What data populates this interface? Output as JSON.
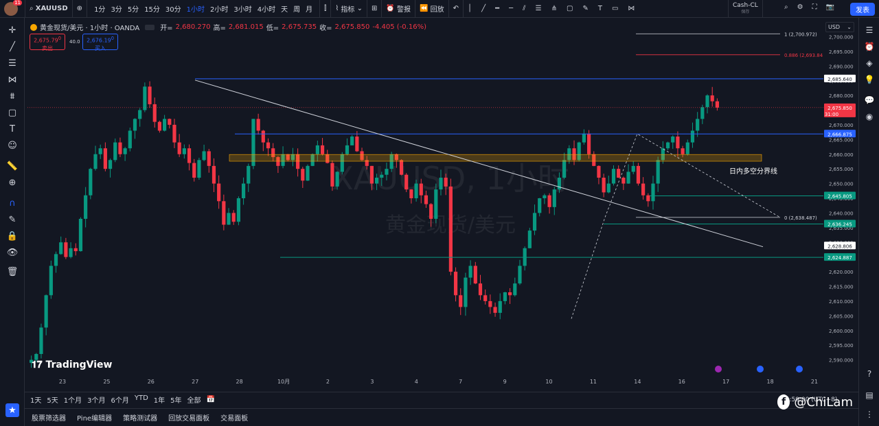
{
  "topbar": {
    "avatar_badge": "11",
    "symbol": "XAUUSD",
    "timeframes": [
      "1分",
      "3分",
      "5分",
      "15分",
      "30分",
      "1小时",
      "2小时",
      "3小时",
      "4小时",
      "天",
      "周",
      "月"
    ],
    "active_timeframe_index": 5,
    "indicators_label": "指标",
    "alert_label": "警报",
    "replay_label": "回放",
    "layout_name": "Cash-CL",
    "layout_status": "保存",
    "publish_label": "发表"
  },
  "legend": {
    "title": "黄金现货/美元 · 1小时 · OANDA",
    "open_label": "开=",
    "open": "2,680.270",
    "high_label": "高=",
    "high": "2,681.015",
    "low_label": "低=",
    "low": "2,675.735",
    "close_label": "收=",
    "close": "2,675.850",
    "change": "-4.405 (-0.16%)"
  },
  "sell": {
    "price": "2,675.79",
    "sup": "0",
    "label": "卖出"
  },
  "buy": {
    "price": "2,676.19",
    "sup": "0",
    "label": "买入"
  },
  "spread": "40.0",
  "currency": "USD",
  "watermark": {
    "main": "XAUUSD, 1小时",
    "sub": "黄金现货/美元"
  },
  "tv_logo": "TradingView",
  "annotation_text": "日内多空分界线",
  "fib_labels": [
    {
      "text": "1 (2,700.972)",
      "color": "#d1d4dc"
    },
    {
      "text": "0.886 (2,693.84",
      "color": "#f23645"
    },
    {
      "text": "0 (2,638.487)",
      "color": "#d1d4dc"
    }
  ],
  "price_tags": [
    {
      "price": "2,685.640",
      "bg": "#ffffff",
      "fg": "#131722"
    },
    {
      "price": "2,675.850",
      "bg": "#f23645",
      "fg": "#ffffff",
      "countdown": "31:00"
    },
    {
      "price": "2,666.875",
      "bg": "#2962ff",
      "fg": "#ffffff"
    },
    {
      "price": "2,645.805",
      "bg": "#089981",
      "fg": "#ffffff"
    },
    {
      "price": "2,636.245",
      "bg": "#089981",
      "fg": "#ffffff"
    },
    {
      "price": "2,628.806",
      "bg": "#ffffff",
      "fg": "#131722"
    },
    {
      "price": "2,624.887",
      "bg": "#089981",
      "fg": "#ffffff"
    }
  ],
  "bottombar": {
    "ranges": [
      "1天",
      "5天",
      "1个月",
      "3个月",
      "6个月",
      "YTD",
      "1年",
      "5年",
      "全部"
    ],
    "time_display": "14:59:00 (UTC+8)"
  },
  "panels": [
    "股票筛选器",
    "Pine编辑器",
    "策略测试器",
    "回放交易面板",
    "交易面板"
  ],
  "brand": {
    "author": "@ChiLam"
  },
  "chart_data": {
    "type": "candlestick",
    "title": "黄金现货/美元 · 1小时 · OANDA",
    "symbol": "XAUUSD",
    "ylim": [
      2585,
      2705
    ],
    "y_ticks": [
      2590,
      2595,
      2600,
      2605,
      2610,
      2615,
      2620,
      2625,
      2630,
      2635,
      2640,
      2645,
      2650,
      2655,
      2660,
      2665,
      2670,
      2675,
      2680,
      2685,
      2690,
      2695,
      2700
    ],
    "x_tick_labels": [
      "23",
      "25",
      "26",
      "27",
      "28",
      "10月",
      "2",
      "3",
      "4",
      "7",
      "9",
      "10",
      "11",
      "14",
      "16",
      "17",
      "18",
      "21"
    ],
    "last_ohlc": {
      "open": 2680.27,
      "high": 2681.015,
      "low": 2675.735,
      "close": 2675.85
    },
    "change": -4.405,
    "change_pct": -0.16,
    "horizontal_levels": [
      2685.64,
      2666.875,
      2645.805,
      2636.245,
      2624.887,
      2628.806
    ],
    "fib_levels": [
      {
        "ratio": 1,
        "price": 2700.972
      },
      {
        "ratio": 0.886,
        "price": 2693.84
      },
      {
        "ratio": 0,
        "price": 2638.487
      }
    ],
    "path_close": [
      2590,
      2592,
      2601,
      2612,
      2622,
      2626,
      2630,
      2625,
      2628,
      2627,
      2638,
      2646,
      2655,
      2660,
      2662,
      2655,
      2658,
      2664,
      2660,
      2662,
      2668,
      2672,
      2675,
      2683,
      2677,
      2671,
      2668,
      2672,
      2670,
      2664,
      2660,
      2662,
      2657,
      2652,
      2658,
      2661,
      2656,
      2650,
      2644,
      2636,
      2640,
      2637,
      2645,
      2650,
      2656,
      2672,
      2668,
      2664,
      2662,
      2659,
      2656,
      2660,
      2658,
      2660,
      2655,
      2651,
      2656,
      2660,
      2663,
      2660,
      2657,
      2649,
      2654,
      2660,
      2663,
      2666,
      2661,
      2658,
      2656,
      2650,
      2652,
      2653,
      2655,
      2660,
      2658,
      2653,
      2648,
      2645,
      2650,
      2646,
      2643,
      2638,
      2648,
      2652,
      2649,
      2620,
      2612,
      2608,
      2618,
      2622,
      2616,
      2612,
      2610,
      2608,
      2606,
      2610,
      2613,
      2612,
      2616,
      2622,
      2628,
      2634,
      2640,
      2645,
      2646,
      2642,
      2648,
      2652,
      2658,
      2662,
      2658,
      2664,
      2667,
      2660,
      2656,
      2652,
      2647,
      2650,
      2655,
      2652,
      2650,
      2654,
      2656,
      2650,
      2646,
      2644,
      2650,
      2658,
      2662,
      2664,
      2666,
      2662,
      2660,
      2664,
      2668,
      2672,
      2676,
      2680,
      2678,
      2675.85
    ]
  }
}
